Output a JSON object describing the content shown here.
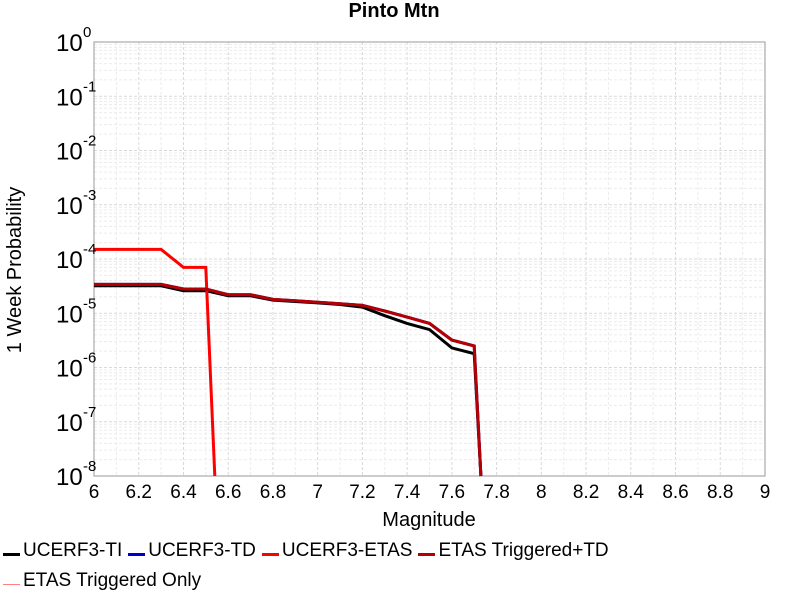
{
  "chart_data": {
    "type": "line",
    "title": "Pinto Mtn",
    "xlabel": "Magnitude",
    "ylabel": "1 Week Probability",
    "xlim": [
      6,
      9
    ],
    "ylim": [
      1e-08,
      1
    ],
    "y_scale": "log",
    "grid": true,
    "legend_position": "bottom",
    "x_ticks": [
      "6",
      "6.2",
      "6.4",
      "6.6",
      "6.8",
      "7",
      "7.2",
      "7.4",
      "7.6",
      "7.8",
      "8",
      "8.2",
      "8.4",
      "8.6",
      "8.8",
      "9"
    ],
    "y_ticks": [
      {
        "base": "10",
        "exp": "0"
      },
      {
        "base": "10",
        "exp": "-1"
      },
      {
        "base": "10",
        "exp": "-2"
      },
      {
        "base": "10",
        "exp": "-3"
      },
      {
        "base": "10",
        "exp": "-4"
      },
      {
        "base": "10",
        "exp": "-5"
      },
      {
        "base": "10",
        "exp": "-6"
      },
      {
        "base": "10",
        "exp": "-7"
      },
      {
        "base": "10",
        "exp": "-8"
      }
    ],
    "series": [
      {
        "name": "UCERF3-TI",
        "color": "#000000",
        "width": 3,
        "x": [
          6.0,
          6.1,
          6.2,
          6.3,
          6.4,
          6.5,
          6.6,
          6.7,
          6.8,
          6.9,
          7.0,
          7.1,
          7.2,
          7.3,
          7.4,
          7.5,
          7.6,
          7.7,
          7.73
        ],
        "y": [
          3.2e-05,
          3.2e-05,
          3.2e-05,
          3.2e-05,
          2.6e-05,
          2.6e-05,
          2.1e-05,
          2.1e-05,
          1.75e-05,
          1.65e-05,
          1.55e-05,
          1.45e-05,
          1.3e-05,
          9e-06,
          6.5e-06,
          5e-06,
          2.3e-06,
          1.8e-06,
          1e-08
        ]
      },
      {
        "name": "UCERF3-TD",
        "color": "#0000cc",
        "width": 3,
        "x": [
          6.0,
          6.1,
          6.2,
          6.3,
          6.4,
          6.5,
          6.6,
          6.7,
          6.8,
          6.9,
          7.0,
          7.1,
          7.2,
          7.3,
          7.4,
          7.5,
          7.6,
          7.7,
          7.73
        ],
        "y": [
          3.4e-05,
          3.4e-05,
          3.4e-05,
          3.4e-05,
          2.8e-05,
          2.8e-05,
          2.2e-05,
          2.2e-05,
          1.8e-05,
          1.7e-05,
          1.6e-05,
          1.5e-05,
          1.4e-05,
          1.1e-05,
          8.5e-06,
          6.5e-06,
          3.2e-06,
          2.5e-06,
          1e-08
        ]
      },
      {
        "name": "UCERF3-ETAS",
        "color": "#ff0000",
        "width": 3,
        "x": [
          6.0,
          6.1,
          6.2,
          6.3,
          6.4,
          6.5,
          6.54
        ],
        "y": [
          0.00015,
          0.00015,
          0.00015,
          0.00015,
          7e-05,
          7e-05,
          1e-08
        ]
      },
      {
        "name": "ETAS Triggered+TD",
        "color": "#b40000",
        "width": 3,
        "x": [
          6.0,
          6.1,
          6.2,
          6.3,
          6.4,
          6.5,
          6.6,
          6.7,
          6.8,
          6.9,
          7.0,
          7.1,
          7.2,
          7.3,
          7.4,
          7.5,
          7.6,
          7.7,
          7.73
        ],
        "y": [
          3.4e-05,
          3.4e-05,
          3.4e-05,
          3.4e-05,
          2.8e-05,
          2.8e-05,
          2.2e-05,
          2.2e-05,
          1.8e-05,
          1.7e-05,
          1.6e-05,
          1.5e-05,
          1.4e-05,
          1.1e-05,
          8.5e-06,
          6.5e-06,
          3.2e-06,
          2.5e-06,
          1e-08
        ]
      },
      {
        "name": "ETAS Triggered Only",
        "color": "#ff8080",
        "width": 1.5,
        "x": [],
        "y": []
      }
    ]
  }
}
